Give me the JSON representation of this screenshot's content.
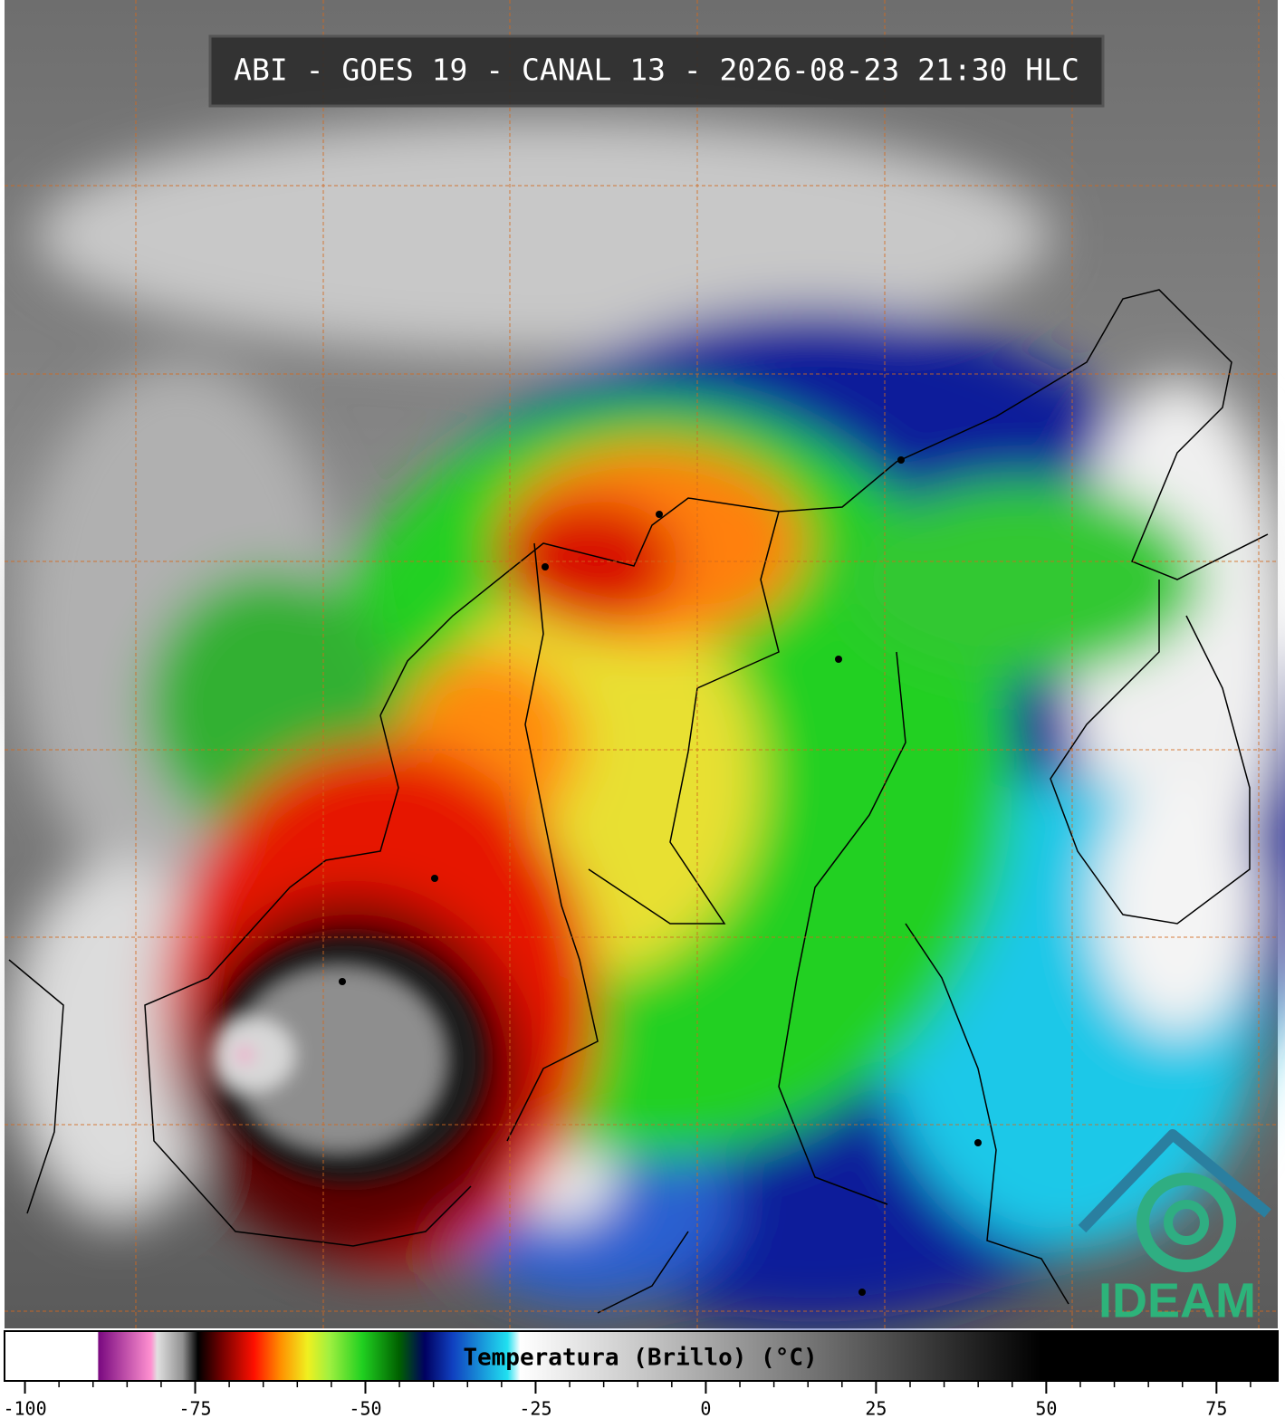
{
  "header": {
    "title": "ABI - GOES 19 - CANAL 13 - 2026-08-23 21:30 HLC"
  },
  "logo": {
    "text": "IDEAM"
  },
  "colorbar": {
    "label": "Temperatura (Brillo) (°C)",
    "range": [
      -103,
      84
    ],
    "ticks": [
      -100,
      -75,
      -50,
      -25,
      0,
      25,
      50,
      75
    ]
  }
}
